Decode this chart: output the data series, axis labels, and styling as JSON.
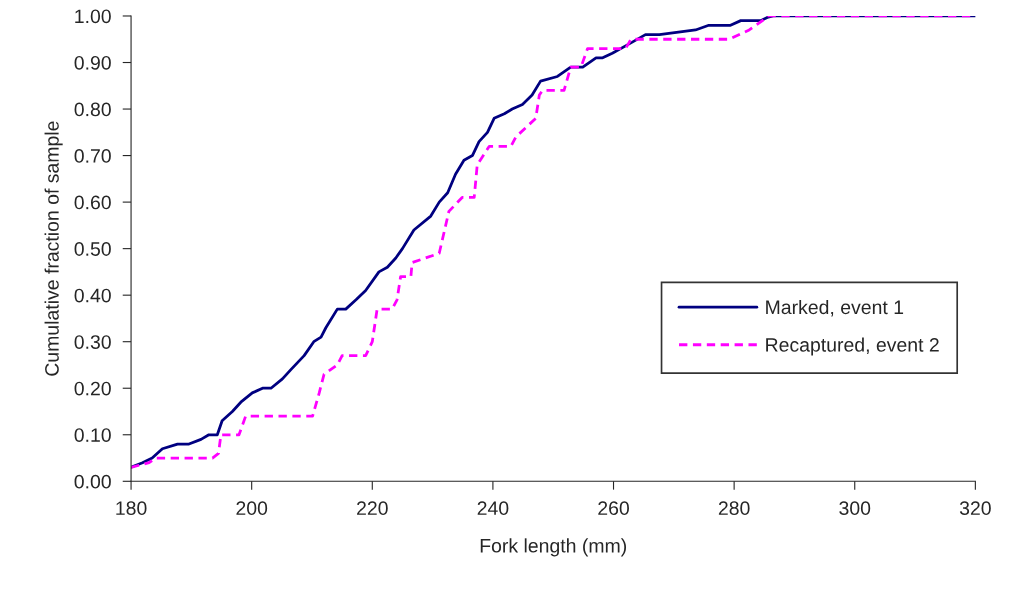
{
  "chart_data": {
    "type": "line",
    "xlabel": "Fork length (mm)",
    "ylabel": "Cumulative fraction of sample",
    "xlim": [
      180,
      320
    ],
    "xticks": [
      180,
      200,
      220,
      240,
      260,
      280,
      300,
      320
    ],
    "ylim": [
      0,
      1
    ],
    "yticks": [
      {
        "value": 0,
        "label": "0.00"
      },
      {
        "value": 0.1,
        "label": "0.10"
      },
      {
        "value": 0.2,
        "label": "0.20"
      },
      {
        "value": 0.3,
        "label": "0.30"
      },
      {
        "value": 0.4,
        "label": "0.40"
      },
      {
        "value": 0.5,
        "label": "0.50"
      },
      {
        "value": 0.6,
        "label": "0.60"
      },
      {
        "value": 0.7,
        "label": "0.70"
      },
      {
        "value": 0.8,
        "label": "0.80"
      },
      {
        "value": 0.9,
        "label": "0.90"
      },
      {
        "value": 1,
        "label": "1.00"
      }
    ],
    "grid": false,
    "legend": "right",
    "marker": "none",
    "series": [
      {
        "name": "Marked, event 1",
        "color": "#000080",
        "line_style": "solid",
        "x": [
          180,
          181.9,
          183.5,
          185.2,
          187.7,
          189.6,
          191.6,
          192.9,
          194.3,
          195.1,
          196.8,
          198.2,
          200.1,
          201.8,
          203.2,
          205.1,
          206.5,
          208.7,
          210.3,
          211.5,
          212.3,
          214.2,
          215.6,
          217.3,
          218.9,
          221.1,
          222.5,
          223.9,
          225,
          226.9,
          229.7,
          231.1,
          232.5,
          233.8,
          235.2,
          236.6,
          237.7,
          239.1,
          240.2,
          241.9,
          243.2,
          244.9,
          246.5,
          247.9,
          250.7,
          252.9,
          254.9,
          257.1,
          258.2,
          259.8,
          262.6,
          265.3,
          267.6,
          273.6,
          275.8,
          279.4,
          281.1,
          284.4,
          285.5,
          286.5,
          320
        ],
        "values": [
          0.03,
          0.04,
          0.05,
          0.07,
          0.08,
          0.08,
          0.09,
          0.1,
          0.1,
          0.13,
          0.15,
          0.17,
          0.19,
          0.2,
          0.2,
          0.22,
          0.24,
          0.27,
          0.3,
          0.31,
          0.33,
          0.37,
          0.37,
          0.39,
          0.41,
          0.45,
          0.46,
          0.48,
          0.5,
          0.54,
          0.57,
          0.6,
          0.62,
          0.66,
          0.69,
          0.7,
          0.73,
          0.75,
          0.78,
          0.79,
          0.8,
          0.81,
          0.83,
          0.86,
          0.87,
          0.89,
          0.89,
          0.91,
          0.91,
          0.92,
          0.94,
          0.96,
          0.96,
          0.97,
          0.98,
          0.98,
          0.99,
          0.99,
          0.997,
          1.0,
          1.0
        ]
      },
      {
        "name": "Recaptured, event 2",
        "color": "#ff00ff",
        "line_style": "dashed",
        "x": [
          180,
          183,
          184.1,
          193.5,
          194.5,
          194.9,
          197.9,
          199,
          210.1,
          211.2,
          212,
          214.2,
          215,
          218.9,
          220,
          220.8,
          223.3,
          224.1,
          224.7,
          226.4,
          226.6,
          231.1,
          232.7,
          234.9,
          236.9,
          237.4,
          239.4,
          243,
          243.8,
          247.1,
          247.7,
          248.2,
          251.8,
          252.9,
          254.6,
          255.7,
          262,
          262.9,
          279.2,
          282.5,
          284.7,
          285.5,
          320
        ],
        "values": [
          0.03,
          0.04,
          0.05,
          0.05,
          0.06,
          0.1,
          0.1,
          0.14,
          0.14,
          0.19,
          0.23,
          0.25,
          0.27,
          0.27,
          0.3,
          0.37,
          0.37,
          0.39,
          0.44,
          0.44,
          0.47,
          0.49,
          0.58,
          0.61,
          0.61,
          0.68,
          0.72,
          0.72,
          0.74,
          0.78,
          0.83,
          0.84,
          0.84,
          0.89,
          0.89,
          0.93,
          0.93,
          0.95,
          0.95,
          0.97,
          0.99,
          1.0,
          1.0
        ]
      }
    ]
  }
}
